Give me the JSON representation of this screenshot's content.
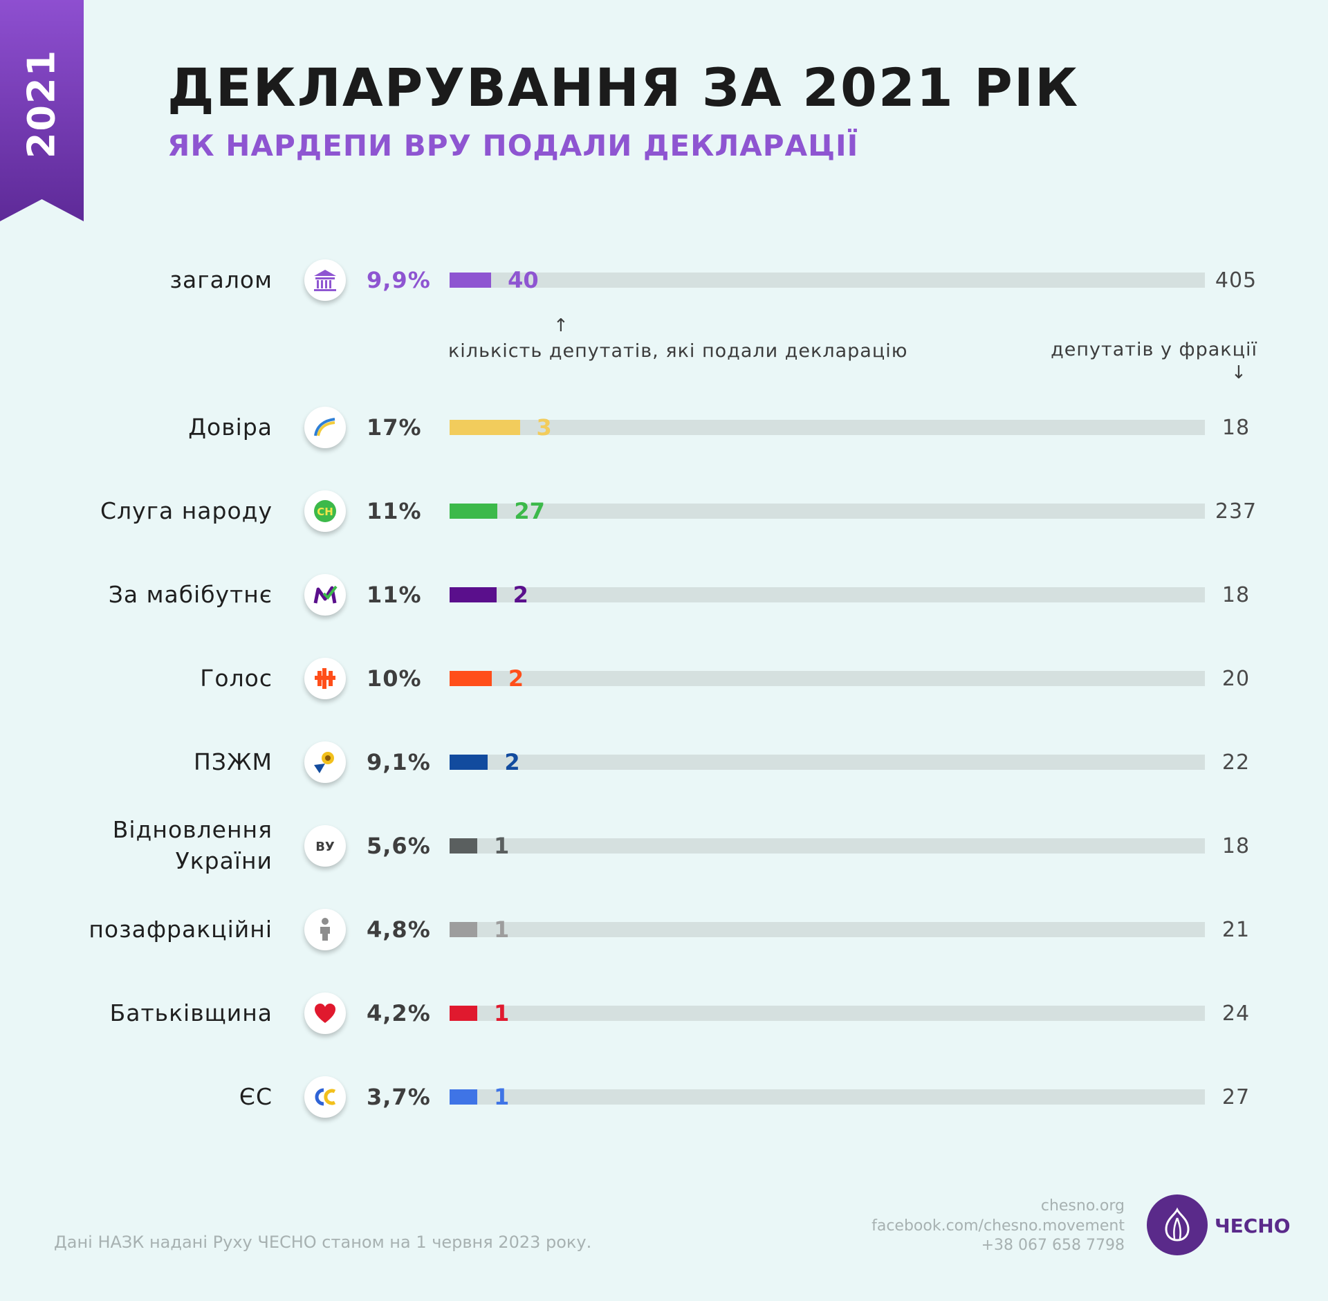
{
  "header": {
    "year_tag": "2021",
    "title": "ДЕКЛАРУВАННЯ ЗА 2021 РІК",
    "subtitle": "ЯК НАРДЕПИ ВРУ ПОДАЛИ ДЕКЛАРАЦІЇ"
  },
  "notes": {
    "declared_label": "кількість депутатів, які подали декларацію",
    "faction_total_label": "депутатів у фракції",
    "up_arrow": "↑",
    "down_arrow": "↓"
  },
  "colors": {
    "total": "#8e55d1",
    "dovira": "#f2cc5c",
    "sluha": "#3cb94a",
    "mabutne": "#5a0f8c",
    "holos": "#ff4e1a",
    "pzzhm": "#124b9e",
    "vu": "#5a5f5f",
    "poza": "#9d9d9d",
    "batkivshchyna": "#e0192e",
    "es": "#3f74e6"
  },
  "chart_data": {
    "type": "bar",
    "orientation": "horizontal",
    "title": "ДЕКЛАРУВАННЯ ЗА 2021 РІК",
    "subtitle": "ЯК НАРДЕПИ ВРУ ПОДАЛИ ДЕКЛАРАЦІЇ",
    "rows": [
      {
        "label": "загалом",
        "pct": "9,9%",
        "declared": 40,
        "total": 405,
        "icon": "parliament-icon",
        "color": "#8e55d1",
        "highlight": true
      },
      {
        "label": "Довіра",
        "pct": "17%",
        "declared": 3,
        "total": 18,
        "icon": "dovira-rainbow-icon",
        "color": "#f2cc5c"
      },
      {
        "label": "Слуга народу",
        "pct": "11%",
        "declared": 27,
        "total": 237,
        "icon": "sluha-narodu-logo-icon",
        "color": "#3cb94a"
      },
      {
        "label": "За мабібутнє",
        "pct": "11%",
        "declared": 2,
        "total": 18,
        "icon": "za-maibutnie-logo-icon",
        "color": "#5a0f8c"
      },
      {
        "label": "Голос",
        "pct": "10%",
        "declared": 2,
        "total": 20,
        "icon": "holos-logo-icon",
        "color": "#ff4e1a"
      },
      {
        "label": "ПЗЖМ",
        "pct": "9,1%",
        "declared": 2,
        "total": 22,
        "icon": "pzzhm-logo-icon",
        "color": "#124b9e"
      },
      {
        "label": "Відновлення України",
        "label_lines": [
          "Відновлення",
          "України"
        ],
        "pct": "5,6%",
        "declared": 1,
        "total": 18,
        "icon": "vu-logo-icon",
        "color": "#5a5f5f"
      },
      {
        "label": "позафракційні",
        "pct": "4,8%",
        "declared": 1,
        "total": 21,
        "icon": "person-icon",
        "color": "#9d9d9d"
      },
      {
        "label": "Батьківщина",
        "pct": "4,2%",
        "declared": 1,
        "total": 24,
        "icon": "heart-icon",
        "color": "#e0192e"
      },
      {
        "label": "ЄС",
        "pct": "3,7%",
        "declared": 1,
        "total": 27,
        "icon": "es-logo-icon",
        "color": "#3f74e6"
      }
    ],
    "legend": "none",
    "grid": false
  },
  "footer": {
    "source": "Дані НАЗК надані Руху ЧЕСНО станом на 1 червня 2023 року.",
    "site": "chesno.org",
    "facebook": "facebook.com/chesno.movement",
    "phone": "+38 067 658 7798",
    "brand": "ЧЕСНО"
  }
}
